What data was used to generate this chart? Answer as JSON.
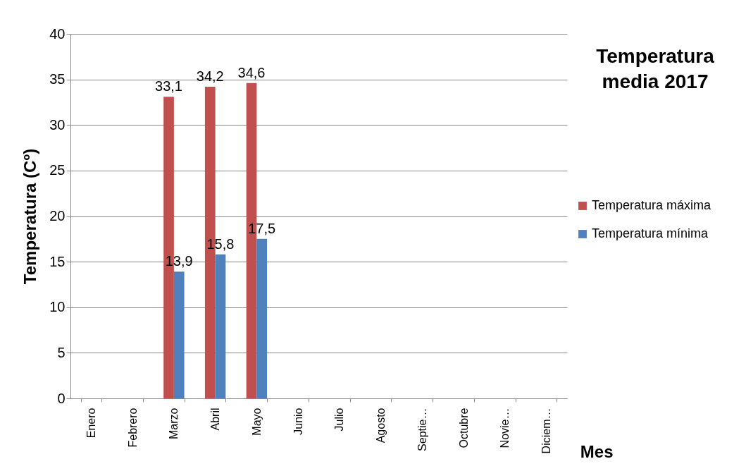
{
  "chart_data": {
    "type": "bar",
    "title": "Temperatura media 2017",
    "xlabel": "Mes",
    "ylabel": "Temperatura (Cº)",
    "categories": [
      "Enero",
      "Febrero",
      "Marzo",
      "Abril",
      "Mayo",
      "Junio",
      "Julio",
      "Agosto",
      "Septie…",
      "Octubre",
      "Novie…",
      "Diciem…"
    ],
    "series": [
      {
        "name": "Temperatura máxima",
        "color": "#c0504d",
        "values": [
          null,
          null,
          33.1,
          34.2,
          34.6,
          null,
          null,
          null,
          null,
          null,
          null,
          null
        ],
        "value_labels": [
          null,
          null,
          "33,1",
          "34,2",
          "34,6",
          null,
          null,
          null,
          null,
          null,
          null,
          null
        ]
      },
      {
        "name": "Temperatura mínima",
        "color": "#4f81bd",
        "values": [
          null,
          null,
          13.9,
          15.8,
          17.5,
          null,
          null,
          null,
          null,
          null,
          null,
          null
        ],
        "value_labels": [
          null,
          null,
          "13,9",
          "15,8",
          "17,5",
          null,
          null,
          null,
          null,
          null,
          null,
          null
        ]
      }
    ],
    "ylim": [
      0,
      40
    ],
    "yticks": [
      0,
      5,
      10,
      15,
      20,
      25,
      30,
      35,
      40
    ],
    "grid": "y",
    "legend": "right"
  }
}
